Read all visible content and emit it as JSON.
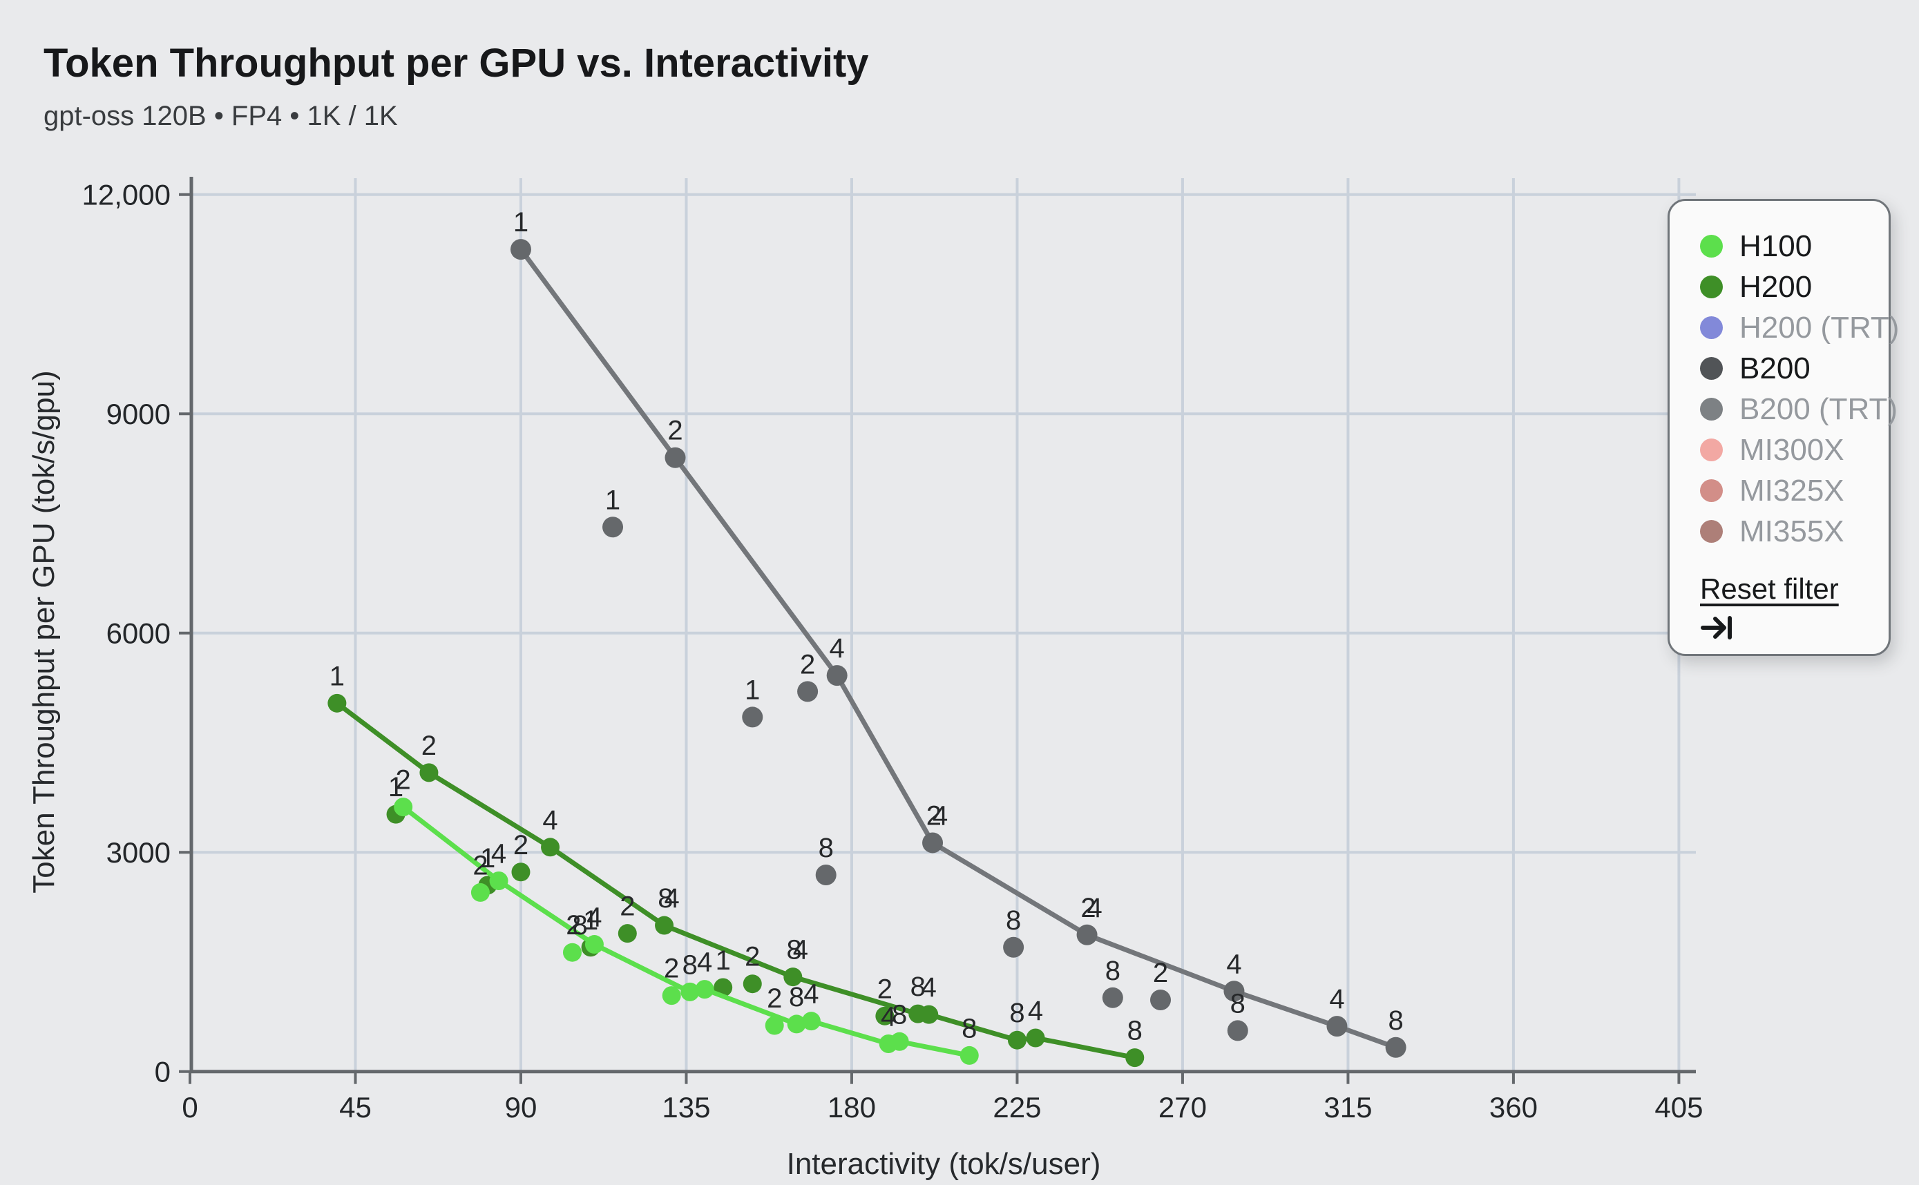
{
  "header": {
    "title": "Token Throughput per GPU vs. Interactivity",
    "subtitle": "gpt-oss 120B • FP4 • 1K / 1K"
  },
  "axes": {
    "x": {
      "label": "Interactivity (tok/s/user)",
      "ticks": [
        0,
        45,
        90,
        135,
        180,
        225,
        270,
        315,
        360,
        405
      ],
      "min": 0,
      "max": 405
    },
    "y": {
      "label": "Token Throughput per GPU (tok/s/gpu)",
      "ticks": [
        {
          "value": 0,
          "text": "0"
        },
        {
          "value": 3000,
          "text": "3000"
        },
        {
          "value": 6000,
          "text": "6000"
        },
        {
          "value": 9000,
          "text": "9000"
        },
        {
          "value": 12000,
          "text": "12,000"
        }
      ]
    }
  },
  "legend": {
    "reset_label": "Reset filter",
    "items": [
      {
        "label": "H100",
        "color": "#5cdf4c",
        "active": true
      },
      {
        "label": "H200",
        "color": "#3e8f27",
        "active": true
      },
      {
        "label": "H200 (TRT)",
        "color": "#8289d9",
        "active": false
      },
      {
        "label": "B200",
        "color": "#515457",
        "active": true
      },
      {
        "label": "B200 (TRT)",
        "color": "#7d8184",
        "active": false
      },
      {
        "label": "MI300X",
        "color": "#f2a8a3",
        "active": false
      },
      {
        "label": "MI325X",
        "color": "#d28e88",
        "active": false
      },
      {
        "label": "MI355X",
        "color": "#ad7f78",
        "active": false
      }
    ]
  },
  "chart_data": {
    "type": "scatter",
    "title": "Token Throughput per GPU vs. Interactivity",
    "xlabel": "Interactivity (tok/s/user)",
    "ylabel": "Token Throughput per GPU (tok/s/gpu)",
    "xlim": [
      0,
      405
    ],
    "ylim": [
      0,
      12000
    ],
    "grid": true,
    "legend_position": "right",
    "point_label_meaning": "GPUs per replica (TP degree)",
    "series": [
      {
        "name": "B200",
        "color": "#73767a",
        "dot_color": "#65686b",
        "dot_radius": 15,
        "line_points": [
          [
            90,
            11250,
            "1"
          ],
          [
            132,
            8400,
            "2"
          ],
          [
            176,
            5420,
            "4"
          ],
          [
            202,
            3130,
            "24"
          ],
          [
            244,
            1870,
            "24"
          ],
          [
            284,
            1100,
            "4"
          ],
          [
            312,
            620,
            "4"
          ],
          [
            328,
            330,
            "8"
          ]
        ],
        "scatter_points": [
          [
            115,
            7450,
            "1"
          ],
          [
            153,
            4850,
            "1"
          ],
          [
            168,
            5200,
            "2"
          ],
          [
            173,
            2690,
            "8"
          ],
          [
            224,
            1700,
            "8"
          ],
          [
            251,
            1010,
            "8"
          ],
          [
            264,
            980,
            "2"
          ],
          [
            285,
            560,
            "8"
          ]
        ]
      },
      {
        "name": "H200",
        "color": "#3e8f27",
        "dot_color": "#3e8f27",
        "dot_radius": 13.5,
        "line_points": [
          [
            40,
            5040,
            "1"
          ],
          [
            65,
            4090,
            "2"
          ],
          [
            98,
            3070,
            "4"
          ],
          [
            129,
            2000,
            "84"
          ],
          [
            164,
            1295,
            "84"
          ],
          [
            198,
            790,
            "8"
          ],
          [
            201,
            780,
            "4"
          ],
          [
            225,
            430,
            "8"
          ],
          [
            230,
            460,
            "4"
          ],
          [
            257,
            190,
            "8"
          ]
        ],
        "scatter_points": [
          [
            56,
            3520,
            "1"
          ],
          [
            81,
            2550,
            "1"
          ],
          [
            90,
            2730,
            "2"
          ],
          [
            109,
            1700,
            "1"
          ],
          [
            119,
            1890,
            "2"
          ],
          [
            145,
            1150,
            "1"
          ],
          [
            153,
            1200,
            "2"
          ],
          [
            189,
            760,
            "2"
          ]
        ]
      },
      {
        "name": "H100",
        "color": "#5cdf4c",
        "dot_color": "#5cdf4c",
        "dot_radius": 13.5,
        "line_points": [
          [
            58,
            3620,
            "2"
          ],
          [
            84,
            2610,
            "4"
          ],
          [
            110,
            1740,
            "4"
          ],
          [
            136,
            1090,
            "8"
          ],
          [
            140,
            1125,
            "4"
          ],
          [
            165,
            650,
            "8"
          ],
          [
            169,
            690,
            "4"
          ],
          [
            190,
            380,
            "4"
          ],
          [
            193,
            410,
            "8"
          ],
          [
            212,
            220,
            "8"
          ]
        ],
        "scatter_points": [
          [
            79,
            2450,
            "2"
          ],
          [
            104,
            1630,
            "28"
          ],
          [
            131,
            1040,
            "2"
          ],
          [
            159,
            630,
            "2"
          ]
        ]
      }
    ]
  }
}
